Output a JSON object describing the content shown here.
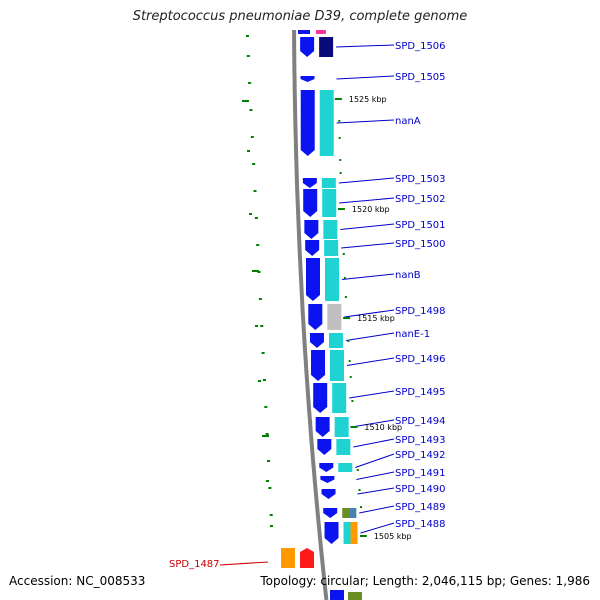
{
  "title": "Streptococcus pneumoniae D39, complete genome",
  "footer": {
    "accession": "Accession: NC_008533",
    "summary": "Topology: circular; Length: 2,046,115 bp; Genes: 1,986"
  },
  "colors": {
    "gene_forward": "#0b14f0",
    "gene_dark": "#0a0a7a",
    "cog_cyan": "#1fd3d3",
    "cog_gray": "#c0c0c0",
    "cog_green": "#6b8e23",
    "cog_orange": "#ff9900",
    "cog_red": "#ff1a1a",
    "label_blue": "#0000cc",
    "label_red": "#cc0000",
    "tick_green": "#008000",
    "backbone": "#808080"
  },
  "ticks": [
    {
      "label": "1525 kbp",
      "kbp": 1525
    },
    {
      "label": "1520 kbp",
      "kbp": 1520
    },
    {
      "label": "1515 kbp",
      "kbp": 1515
    },
    {
      "label": "1510 kbp",
      "kbp": 1510
    },
    {
      "label": "1505 kbp",
      "kbp": 1505
    }
  ],
  "genes": [
    {
      "label": "SPD_1506",
      "strand": "+",
      "cog": "dark"
    },
    {
      "label": "SPD_1505",
      "strand": "+",
      "cog": "none"
    },
    {
      "label": "nanA",
      "strand": "+",
      "cog": "cyan"
    },
    {
      "label": "SPD_1503",
      "strand": "+",
      "cog": "cyan"
    },
    {
      "label": "SPD_1502",
      "strand": "+",
      "cog": "cyan"
    },
    {
      "label": "SPD_1501",
      "strand": "+",
      "cog": "cyan"
    },
    {
      "label": "SPD_1500",
      "strand": "+",
      "cog": "cyan"
    },
    {
      "label": "nanB",
      "strand": "+",
      "cog": "cyan"
    },
    {
      "label": "SPD_1498",
      "strand": "+",
      "cog": "gray"
    },
    {
      "label": "nanE-1",
      "strand": "+",
      "cog": "cyan"
    },
    {
      "label": "SPD_1496",
      "strand": "+",
      "cog": "cyan"
    },
    {
      "label": "SPD_1495",
      "strand": "+",
      "cog": "cyan"
    },
    {
      "label": "SPD_1494",
      "strand": "+",
      "cog": "cyan"
    },
    {
      "label": "SPD_1493",
      "strand": "+",
      "cog": "cyan"
    },
    {
      "label": "SPD_1492",
      "strand": "+",
      "cog": "cyan"
    },
    {
      "label": "SPD_1491",
      "strand": "+",
      "cog": "none"
    },
    {
      "label": "SPD_1490",
      "strand": "+",
      "cog": "none"
    },
    {
      "label": "SPD_1489",
      "strand": "+",
      "cog": "green"
    },
    {
      "label": "SPD_1488",
      "strand": "+",
      "cog": "cyan"
    },
    {
      "label": "SPD_1487",
      "strand": "-",
      "cog": "orange"
    }
  ]
}
